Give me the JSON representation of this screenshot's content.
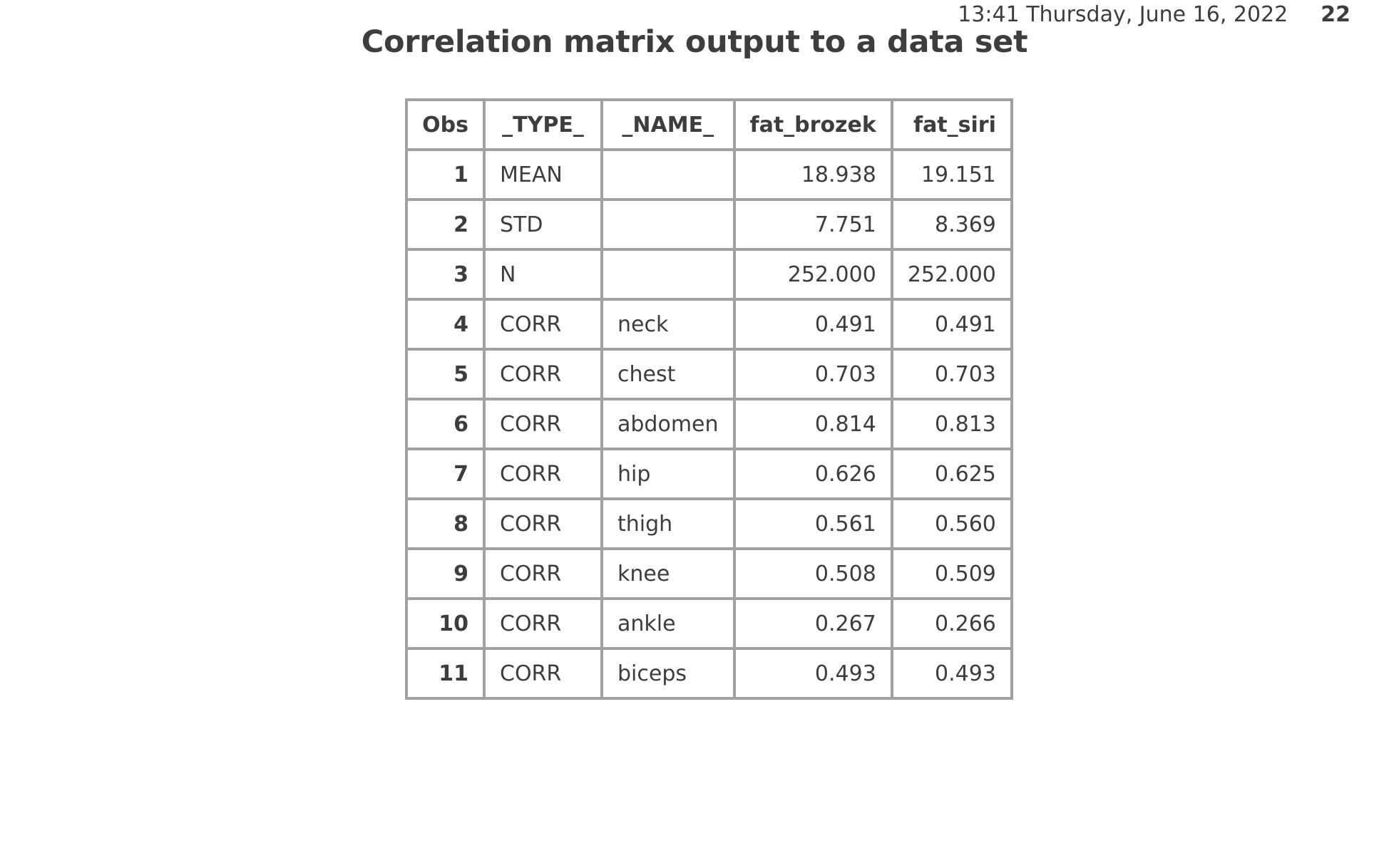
{
  "header": {
    "datetime": "13:41 Thursday, June 16, 2022",
    "page_number": "22"
  },
  "title": "Correlation matrix output to a data set",
  "table": {
    "columns": [
      "Obs",
      "_TYPE_",
      "_NAME_",
      "fat_brozek",
      "fat_siri"
    ],
    "rows": [
      {
        "obs": "1",
        "type": "MEAN",
        "name": "",
        "fat_brozek": "18.938",
        "fat_siri": "19.151"
      },
      {
        "obs": "2",
        "type": "STD",
        "name": "",
        "fat_brozek": "7.751",
        "fat_siri": "8.369"
      },
      {
        "obs": "3",
        "type": "N",
        "name": "",
        "fat_brozek": "252.000",
        "fat_siri": "252.000"
      },
      {
        "obs": "4",
        "type": "CORR",
        "name": "neck",
        "fat_brozek": "0.491",
        "fat_siri": "0.491"
      },
      {
        "obs": "5",
        "type": "CORR",
        "name": "chest",
        "fat_brozek": "0.703",
        "fat_siri": "0.703"
      },
      {
        "obs": "6",
        "type": "CORR",
        "name": "abdomen",
        "fat_brozek": "0.814",
        "fat_siri": "0.813"
      },
      {
        "obs": "7",
        "type": "CORR",
        "name": "hip",
        "fat_brozek": "0.626",
        "fat_siri": "0.625"
      },
      {
        "obs": "8",
        "type": "CORR",
        "name": "thigh",
        "fat_brozek": "0.561",
        "fat_siri": "0.560"
      },
      {
        "obs": "9",
        "type": "CORR",
        "name": "knee",
        "fat_brozek": "0.508",
        "fat_siri": "0.509"
      },
      {
        "obs": "10",
        "type": "CORR",
        "name": "ankle",
        "fat_brozek": "0.267",
        "fat_siri": "0.266"
      },
      {
        "obs": "11",
        "type": "CORR",
        "name": "biceps",
        "fat_brozek": "0.493",
        "fat_siri": "0.493"
      }
    ]
  }
}
